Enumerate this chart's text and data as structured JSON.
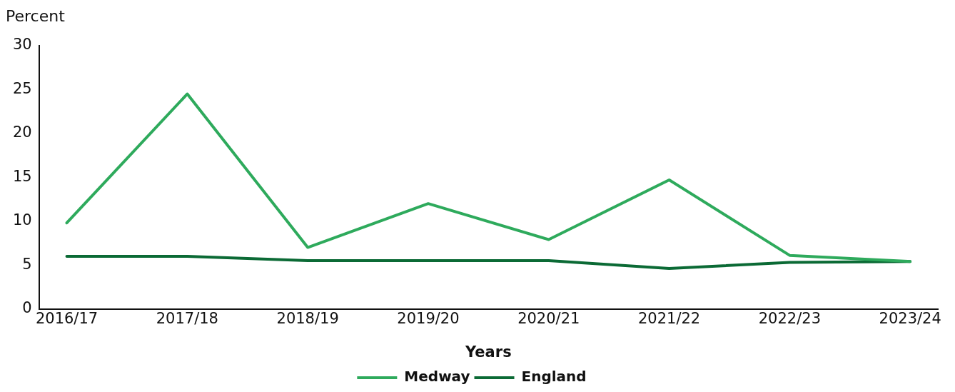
{
  "chart_data": {
    "type": "line",
    "ylabel": "Percent",
    "xlabel": "Years",
    "categories": [
      "2016/17",
      "2017/18",
      "2018/19",
      "2019/20",
      "2020/21",
      "2021/22",
      "2022/23",
      "2023/24"
    ],
    "series": [
      {
        "name": "Medway",
        "color": "#2eaa5c",
        "values": [
          9.8,
          24.5,
          7.0,
          12.0,
          7.9,
          14.7,
          6.1,
          5.4
        ]
      },
      {
        "name": "England",
        "color": "#0b6a35",
        "values": [
          6.0,
          6.0,
          5.5,
          5.5,
          5.5,
          4.6,
          5.3,
          5.4
        ]
      }
    ],
    "ylim": [
      0,
      30
    ],
    "yticks": [
      0,
      5,
      10,
      15,
      20,
      25,
      30
    ],
    "grid": false,
    "legend": "bottom",
    "marker": "none"
  }
}
